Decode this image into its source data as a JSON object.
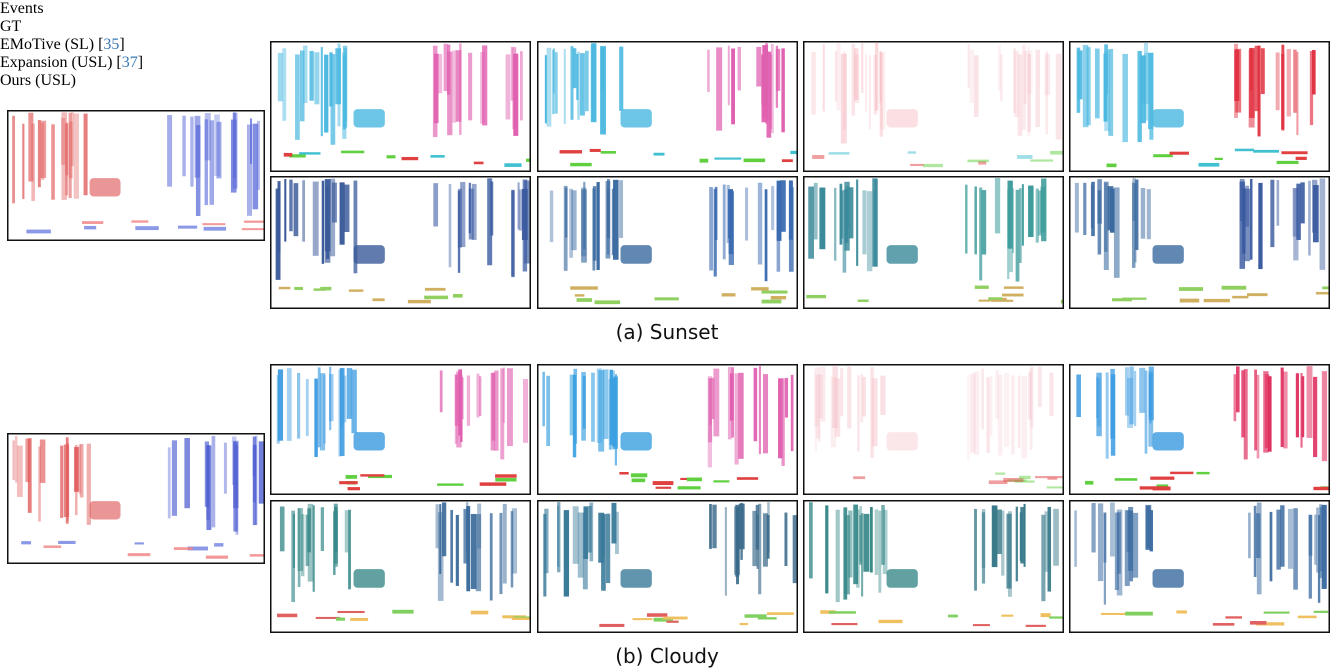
{
  "columns": [
    {
      "parts": [
        "Events"
      ]
    },
    {
      "parts": [
        "GT"
      ]
    },
    {
      "parts": [
        "EMoTive (SL) [",
        "35",
        "]"
      ]
    },
    {
      "parts": [
        "Expansion (USL) [",
        "37",
        "]"
      ]
    },
    {
      "parts": [
        "Ours (USL)"
      ]
    }
  ],
  "captions": [
    "(a) Sunset",
    "(b) Cloudy"
  ]
}
